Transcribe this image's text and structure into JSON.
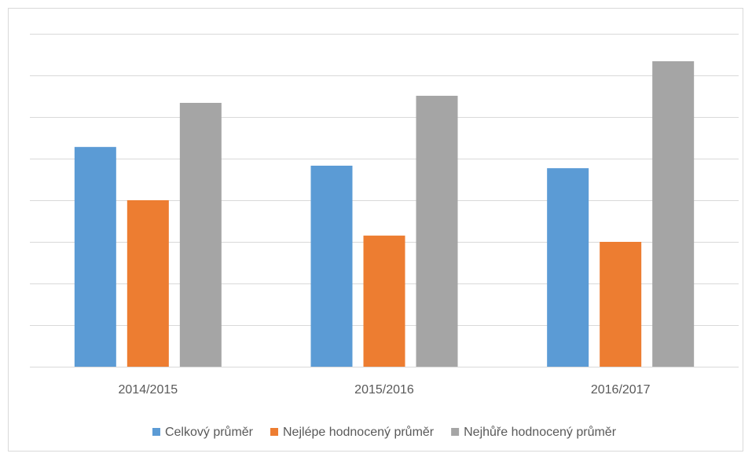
{
  "chart_data": {
    "type": "bar",
    "categories": [
      "2014/2015",
      "2015/2016",
      "2016/2017"
    ],
    "series": [
      {
        "name": "Celkový průměr",
        "color": "#5b9bd5",
        "values": [
          5.28,
          4.83,
          4.77
        ]
      },
      {
        "name": "Nejlépe hodnocený průměr",
        "color": "#ed7d31",
        "values": [
          4.0,
          3.15,
          3.0
        ]
      },
      {
        "name": "Nejhůře hodnocený průměr",
        "color": "#a5a5a5",
        "values": [
          6.34,
          6.51,
          7.34
        ]
      }
    ],
    "ylim": [
      0,
      8
    ],
    "yticks": [
      0,
      1,
      2,
      3,
      4,
      5,
      6,
      7,
      8
    ],
    "grid": true,
    "legend": "bottom"
  }
}
